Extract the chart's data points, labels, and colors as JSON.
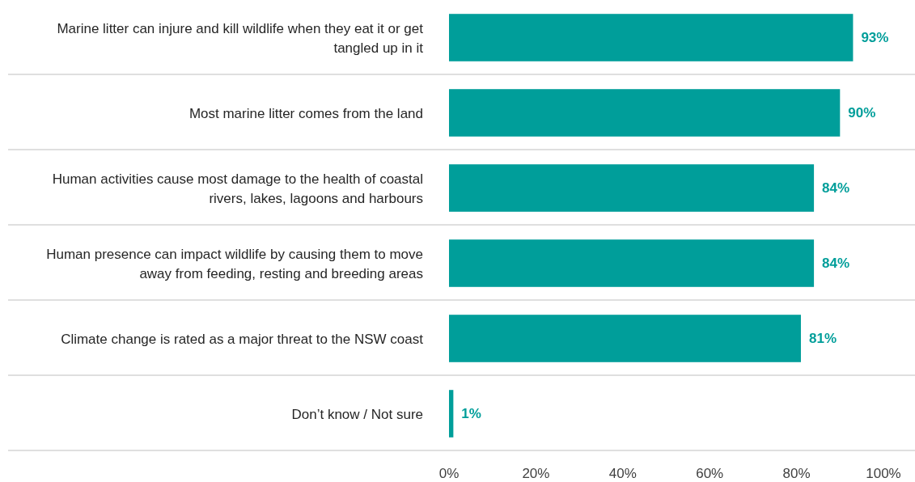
{
  "chart_data": {
    "type": "bar",
    "orientation": "horizontal",
    "categories": [
      "Marine litter can injure and kill wildlife when they eat it or get tangled up in it",
      "Most marine litter comes from the land",
      "Human activities cause most damage to the health of coastal rivers, lakes, lagoons and harbours",
      "Human presence can impact wildlife by causing them to move away from feeding, resting and breeding areas",
      "Climate change is rated as a major threat to the NSW coast",
      "Don’t know / Not sure"
    ],
    "values": [
      93,
      90,
      84,
      84,
      81,
      1
    ],
    "value_labels": [
      "93%",
      "90%",
      "84%",
      "84%",
      "81%",
      "1%"
    ],
    "color": "#009e9a",
    "xlim": [
      0,
      100
    ],
    "xticks": [
      {
        "value": 0,
        "label": "0%"
      },
      {
        "value": 20,
        "label": "20%"
      },
      {
        "value": 40,
        "label": "40%"
      },
      {
        "value": 60,
        "label": "60%"
      },
      {
        "value": 80,
        "label": "80%"
      },
      {
        "value": 100,
        "label": "100%"
      }
    ]
  }
}
